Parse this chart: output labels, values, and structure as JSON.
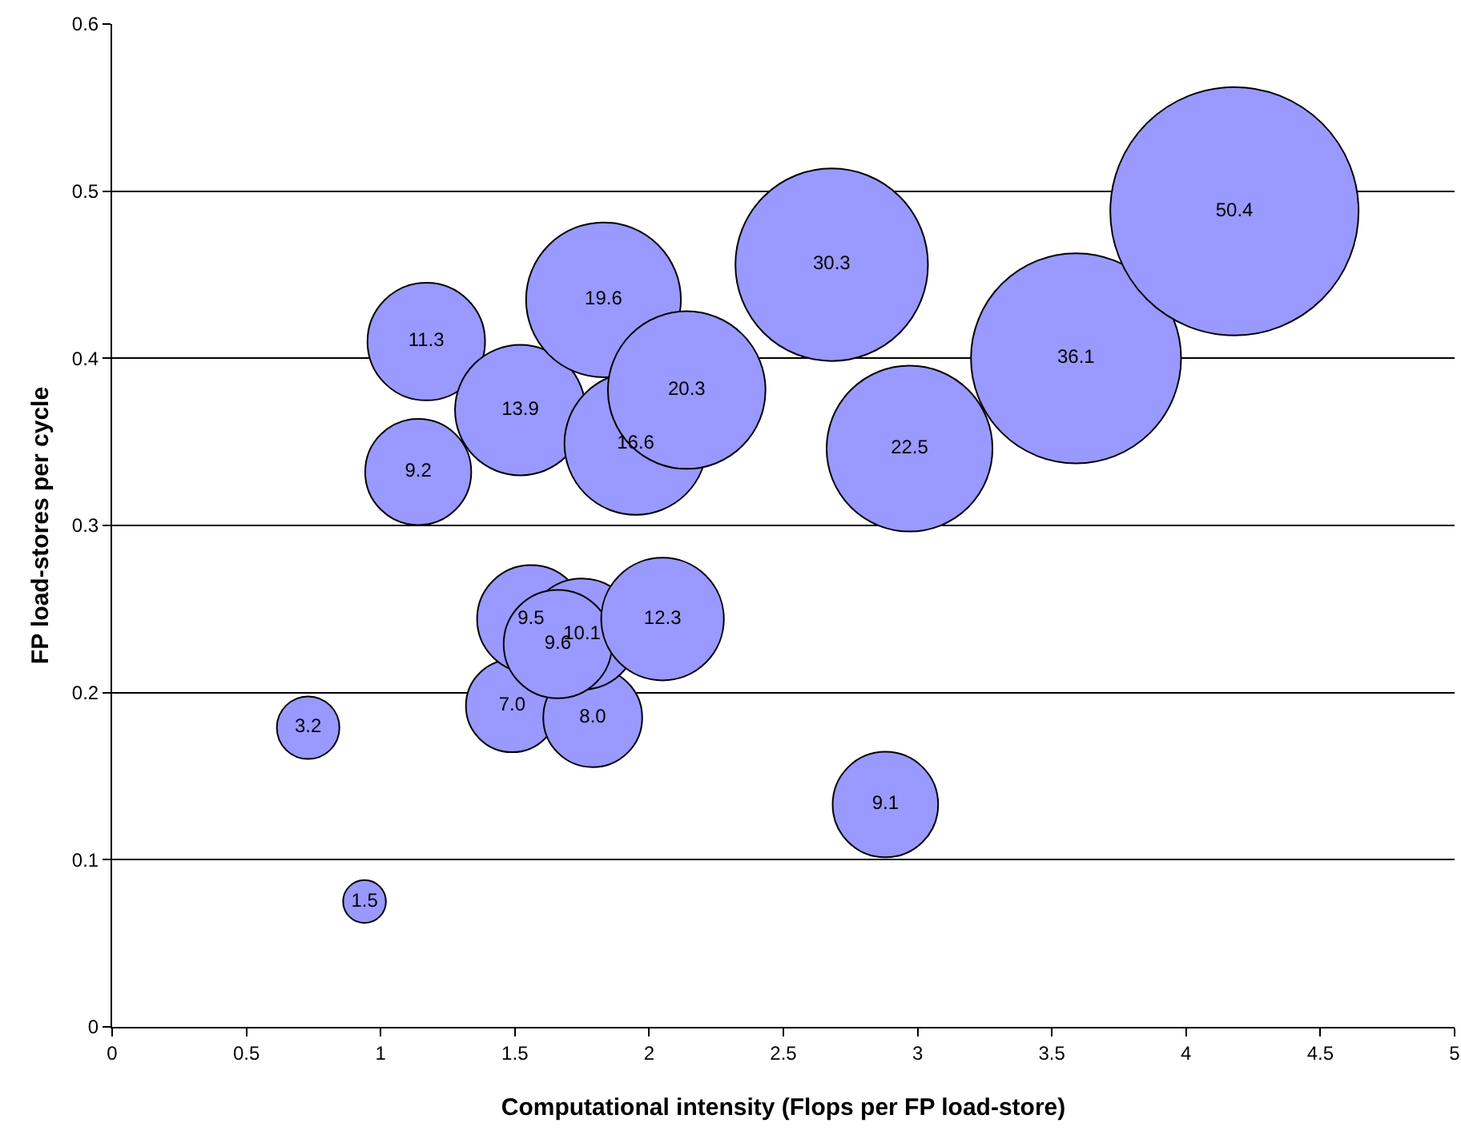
{
  "chart_data": {
    "type": "bubble",
    "xlabel": "Computational intensity (Flops per FP load-store)",
    "ylabel": "FP load-stores per cycle",
    "x": [
      0.94,
      0.73,
      1.49,
      1.79,
      1.56,
      1.75,
      1.66,
      2.05,
      1.14,
      1.17,
      1.52,
      1.95,
      1.83,
      2.14,
      2.97,
      2.88,
      2.68,
      3.59,
      4.18
    ],
    "series": [
      {
        "color": "#9999ff",
        "values": [
          0.075,
          0.179,
          0.192,
          0.185,
          0.244,
          0.235,
          0.229,
          0.244,
          0.332,
          0.41,
          0.369,
          0.349,
          0.435,
          0.381,
          0.346,
          0.133,
          0.456,
          0.4,
          0.488
        ],
        "sizes": [
          1.5,
          3.2,
          7.0,
          8.0,
          9.5,
          10.1,
          9.6,
          12.3,
          9.2,
          11.3,
          13.9,
          16.6,
          19.6,
          20.3,
          22.5,
          9.1,
          30.3,
          36.1,
          50.4
        ],
        "value_labels": [
          "1.5",
          "3.2",
          "7.0",
          "8.0",
          "9.5",
          "10.1",
          "9.6",
          "12.3",
          "9.2",
          "11.3",
          "13.9",
          "16.6",
          "19.6",
          "20.3",
          "22.5",
          "9.1",
          "30.3",
          "36.1",
          "50.4"
        ]
      }
    ],
    "xlim": [
      0,
      5
    ],
    "xticks": [
      0,
      0.5,
      1,
      1.5,
      2,
      2.5,
      3,
      3.5,
      4,
      4.5,
      5
    ],
    "ylim": [
      0,
      0.6
    ],
    "yticks": [
      0,
      0.1,
      0.2,
      0.3,
      0.4,
      0.5,
      0.6
    ],
    "grid": "y"
  }
}
